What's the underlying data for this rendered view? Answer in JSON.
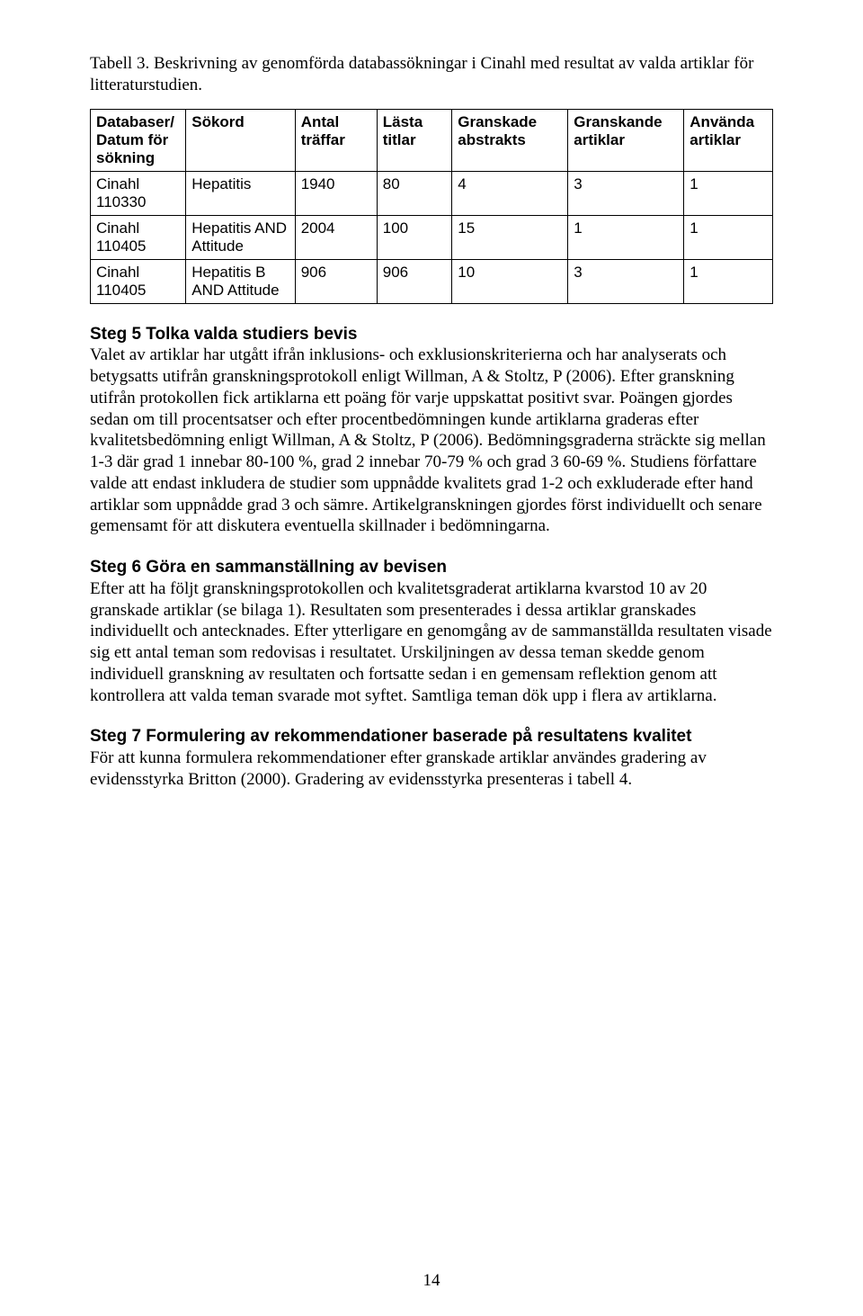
{
  "intro": "Tabell 3. Beskrivning av genomförda databassökningar i Cinahl med resultat av valda artiklar för litteraturstudien.",
  "table": {
    "columns": [
      "Databaser/ Datum för sökning",
      "Sökord",
      "Antal träffar",
      "Lästa titlar",
      "Granskade abstrakts",
      "Granskande artiklar",
      "Använda artiklar"
    ],
    "rows": [
      {
        "db": "Cinahl 110330",
        "sok": "Hepatitis",
        "ant": "1940",
        "las": "80",
        "gra": "4",
        "grk": "3",
        "anv": "1"
      },
      {
        "db": "Cinahl 110405",
        "sok": "Hepatitis AND Attitude",
        "ant": "2004",
        "las": "100",
        "gra": "15",
        "grk": "1",
        "anv": "1"
      },
      {
        "db": "Cinahl 110405",
        "sok": "Hepatitis B AND Attitude",
        "ant": "906",
        "las": "906",
        "gra": "10",
        "grk": "3",
        "anv": "1"
      }
    ]
  },
  "sections": [
    {
      "heading": "Steg 5 Tolka valda studiers bevis",
      "body": "Valet av artiklar har utgått ifrån inklusions- och exklusionskriterierna och har analyserats och betygsatts utifrån granskningsprotokoll enligt Willman, A & Stoltz, P (2006). Efter granskning utifrån protokollen fick artiklarna ett poäng för varje uppskattat positivt svar. Poängen gjordes sedan om till procentsatser och efter procentbedömningen kunde artiklarna graderas efter kvalitetsbedömning enligt Willman, A & Stoltz, P (2006). Bedömningsgraderna sträckte sig mellan 1-3 där grad 1 innebar 80-100 %, grad 2 innebar 70-79 % och grad 3 60-69 %. Studiens författare valde att endast inkludera de studier som uppnådde kvalitets grad 1-2 och exkluderade efter hand artiklar som uppnådde grad 3 och sämre. Artikelgranskningen gjordes först individuellt och senare gemensamt för att diskutera eventuella skillnader i bedömningarna."
    },
    {
      "heading": "Steg 6 Göra en sammanställning av bevisen",
      "body": "Efter att ha följt granskningsprotokollen och kvalitetsgraderat artiklarna kvarstod 10 av 20 granskade artiklar (se bilaga 1). Resultaten som presenterades i dessa artiklar granskades individuellt och antecknades. Efter ytterligare en genomgång av de sammanställda resultaten visade sig ett antal teman som redovisas i resultatet. Urskiljningen av dessa teman skedde genom individuell granskning av resultaten och fortsatte sedan i en gemensam reflektion genom att kontrollera att valda teman svarade mot syftet. Samtliga teman dök upp i flera av artiklarna."
    },
    {
      "heading": "Steg 7 Formulering av rekommendationer baserade på resultatens kvalitet",
      "body": "För att kunna formulera rekommendationer efter granskade artiklar användes gradering av evidensstyrka Britton (2000). Gradering av evidensstyrka presenteras i tabell 4."
    }
  ],
  "page_number": "14"
}
